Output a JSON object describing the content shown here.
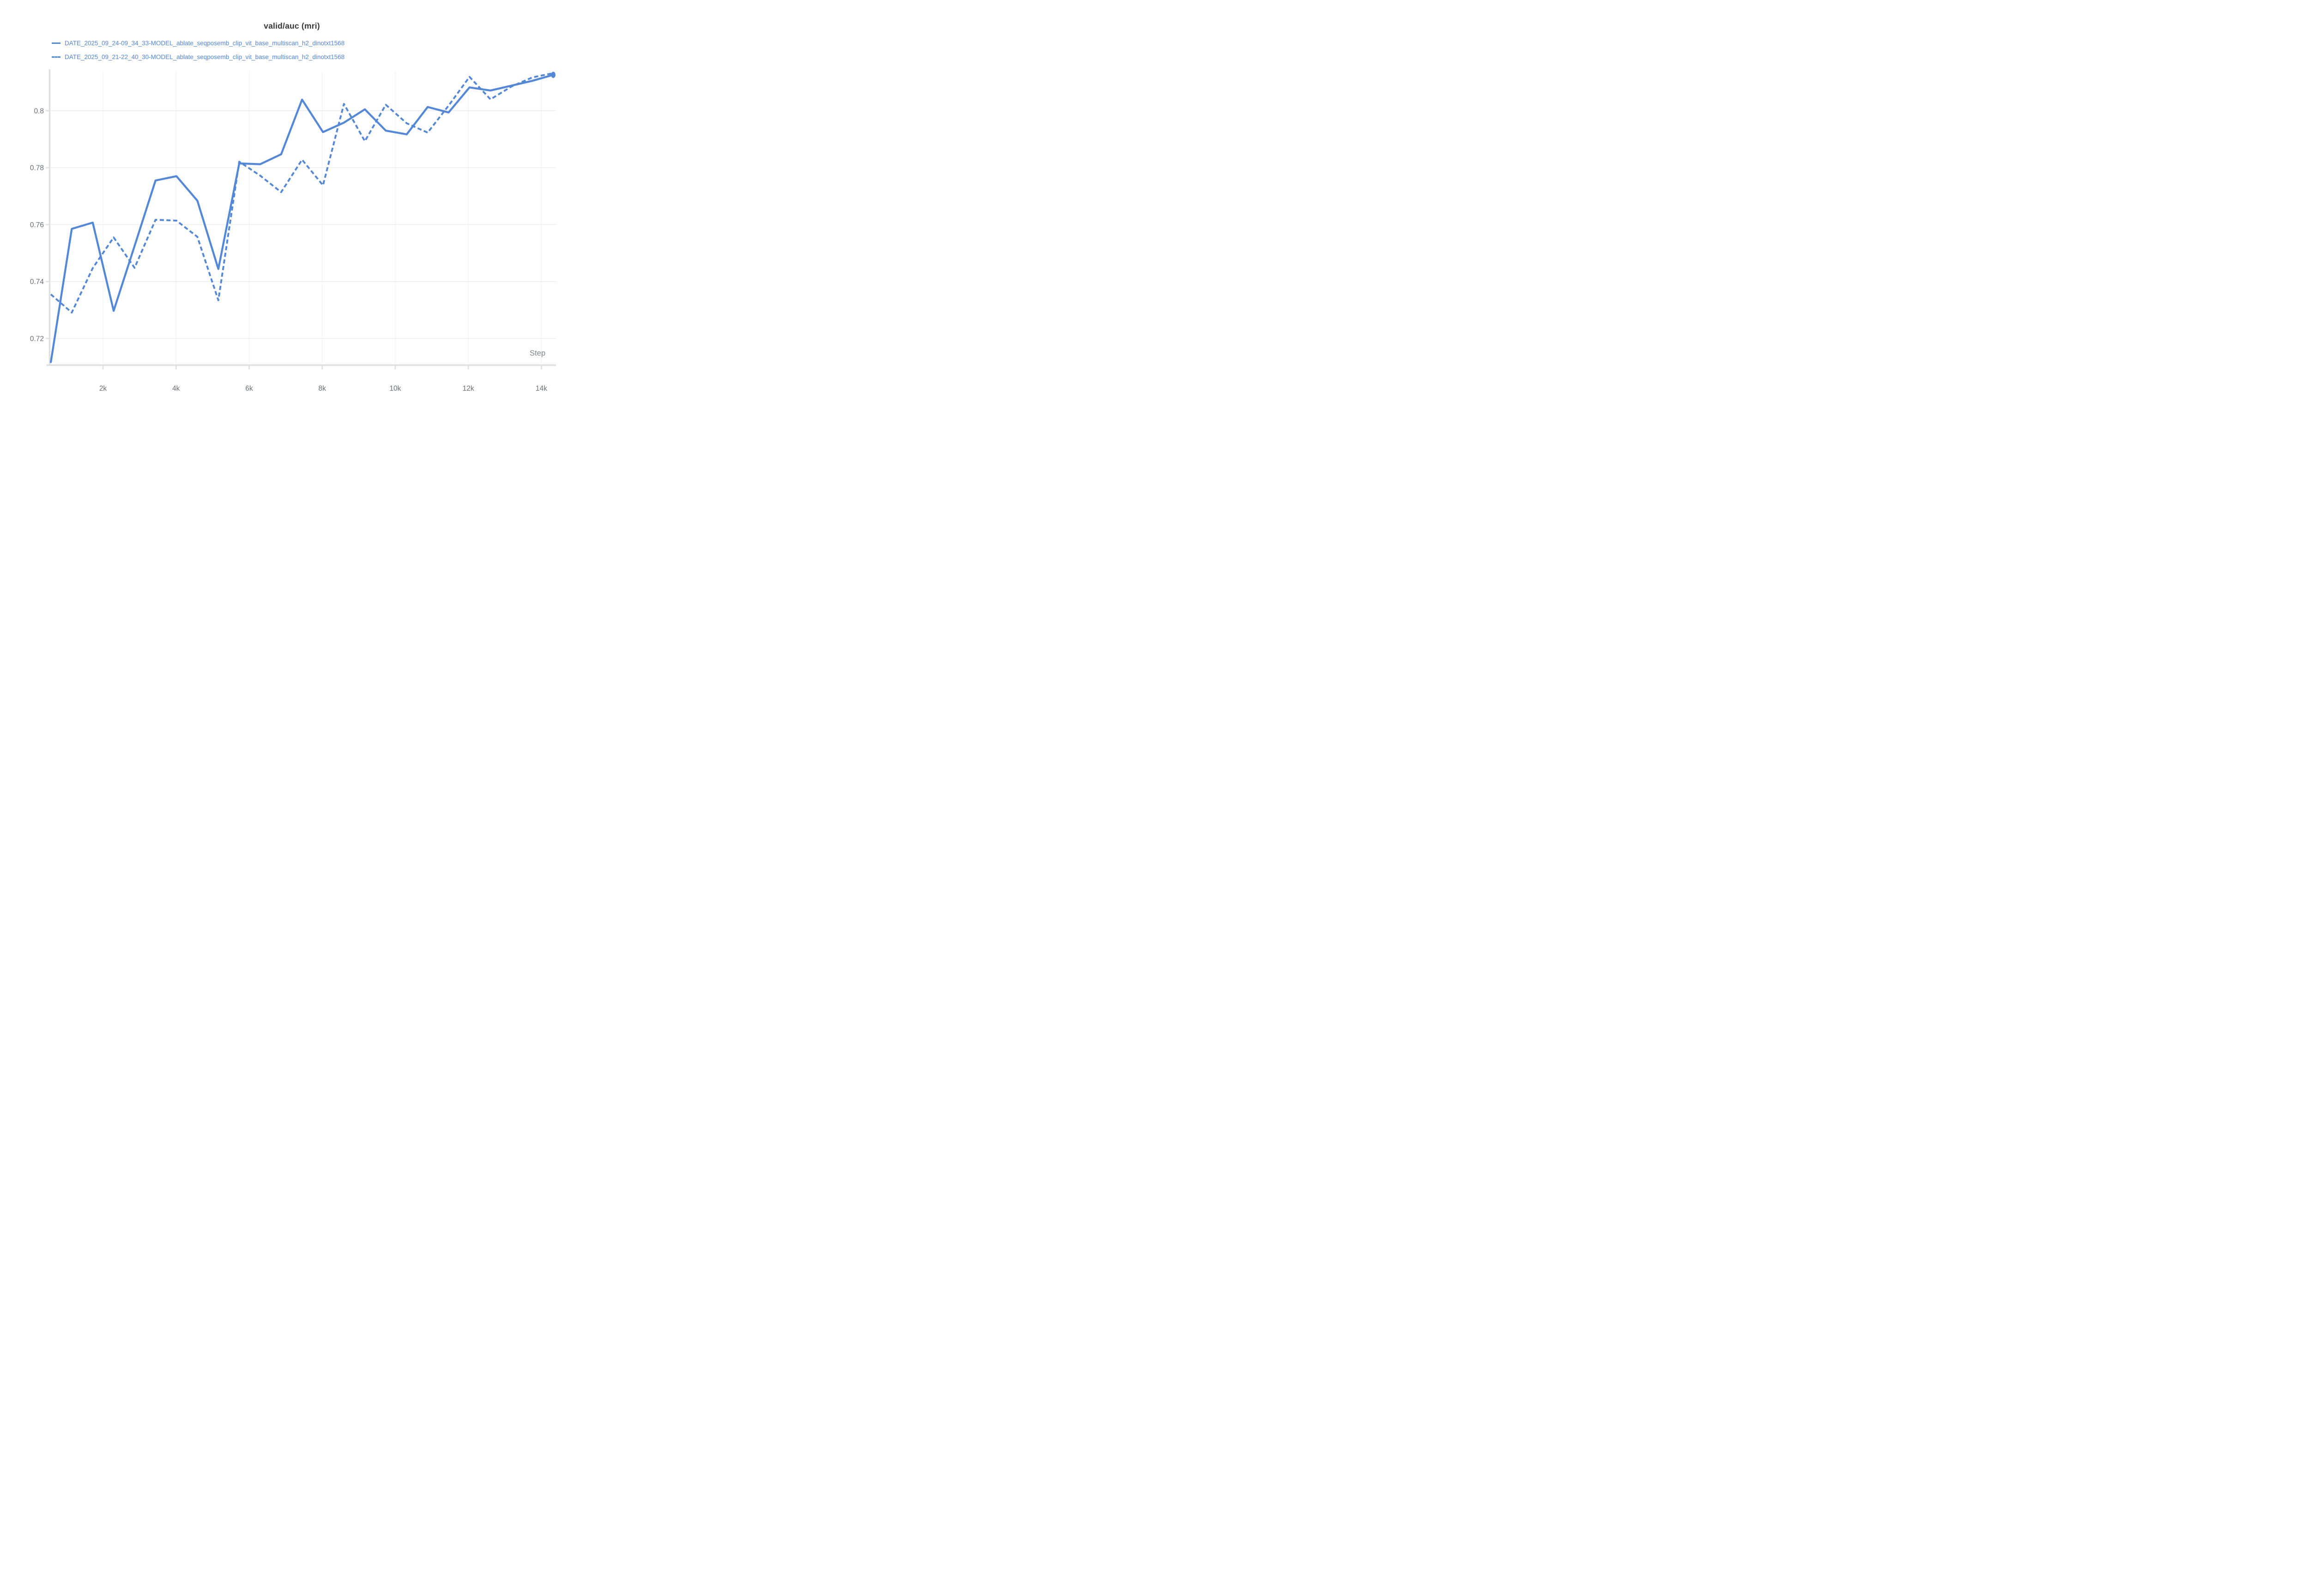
{
  "chart_data": {
    "type": "line",
    "title": "valid/auc (mri)",
    "xlabel": "Step",
    "legend_position": "top-left",
    "grid": true,
    "colors": {
      "series": "#5387d8",
      "grid_h": "#e8e8e8",
      "grid_v": "#efefef",
      "axis": "#e0e0e0",
      "tick_stub": "#e3e3e3",
      "tick_text": "#697078",
      "axis_label_text": "#7d848d",
      "title_text": "#373737"
    },
    "x_range": [
      540,
      14400
    ],
    "y_range": [
      0.7109,
      0.81375
    ],
    "x_ticks": [
      2000,
      4000,
      6000,
      8000,
      10000,
      12000,
      14000
    ],
    "x_tick_labels": [
      "2k",
      "4k",
      "6k",
      "8k",
      "10k",
      "12k",
      "14k"
    ],
    "y_ticks": [
      0.72,
      0.74,
      0.76,
      0.78,
      0.8
    ],
    "y_tick_labels": [
      "0.72",
      "0.74",
      "0.76",
      "0.78",
      "0.8"
    ],
    "steps": [
      573,
      1146,
      1719,
      2292,
      2865,
      3438,
      4011,
      4584,
      5157,
      5730,
      6303,
      6876,
      7449,
      8022,
      8595,
      9168,
      9741,
      10314,
      10887,
      11460,
      12033,
      12606,
      13179,
      13752,
      14325
    ],
    "series": [
      {
        "name": "DATE_2025_09_24-09_34_33-MODEL_ablate_seqposemb_clip_vit_base_multiscan_h2_dinotxt1568",
        "style": "solid",
        "end_dot": true,
        "values": [
          0.7117,
          0.7585,
          0.7607,
          0.7297,
          0.7525,
          0.7755,
          0.777,
          0.7684,
          0.7444,
          0.7815,
          0.7812,
          0.7847,
          0.8039,
          0.7925,
          0.7958,
          0.8005,
          0.793,
          0.7917,
          0.8013,
          0.7994,
          0.8082,
          0.8071,
          0.8088,
          0.8105,
          0.8126
        ]
      },
      {
        "name": "DATE_2025_09_21-22_40_30-MODEL_ablate_seqposemb_clip_vit_base_multiscan_h2_dinotxt1568",
        "style": "dashed",
        "end_dot": false,
        "values": [
          0.7355,
          0.7291,
          0.7447,
          0.7555,
          0.7448,
          0.7617,
          0.7614,
          0.7557,
          0.7334,
          0.7821,
          0.7772,
          0.7714,
          0.7828,
          0.7738,
          0.8024,
          0.7893,
          0.8021,
          0.7956,
          0.7923,
          0.8018,
          0.8119,
          0.804,
          0.8085,
          0.8117,
          0.8132
        ]
      }
    ]
  }
}
